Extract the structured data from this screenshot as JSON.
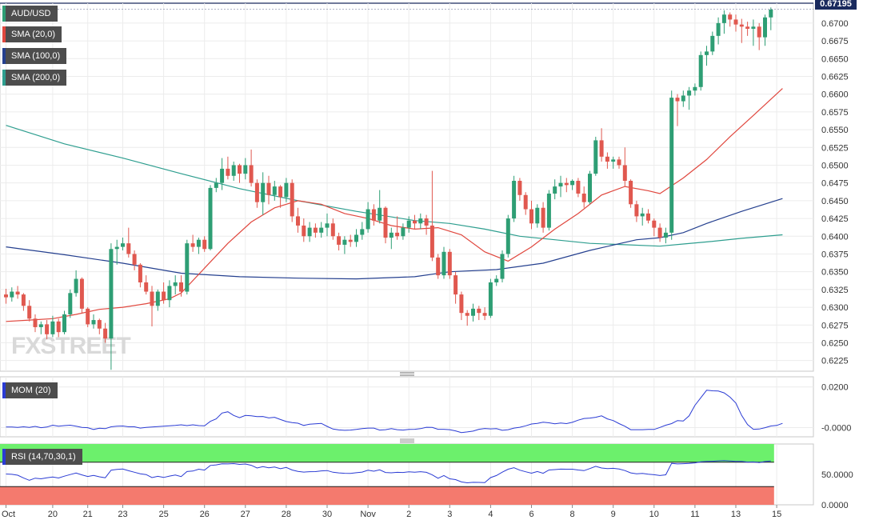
{
  "chart_data": {
    "type": "candlestick",
    "symbol": "AUD/USD",
    "last_price": "0.67195",
    "watermark": "FXSTREET",
    "colors": {
      "up": "#2e9e74",
      "down": "#e0584f",
      "sma20": "#e0473e",
      "sma100": "#25408f",
      "sma200": "#2e9e8f",
      "mom": "#2a3bd4",
      "rsi": "#2a3bd4",
      "rsi_overbought": "#6cf06c",
      "rsi_oversold": "#f47a6e"
    },
    "price_axis": {
      "min": 0.621,
      "max": 0.6728,
      "ticks": [
        "0.6225",
        "0.6250",
        "0.6275",
        "0.6300",
        "0.6325",
        "0.6350",
        "0.6375",
        "0.6400",
        "0.6425",
        "0.6450",
        "0.6475",
        "0.6500",
        "0.6525",
        "0.6550",
        "0.6575",
        "0.6600",
        "0.6625",
        "0.6650",
        "0.6675",
        "0.6700"
      ]
    },
    "x_axis": {
      "labels": [
        "Oct",
        "20",
        "21",
        "23",
        "25",
        "26",
        "27",
        "28",
        "30",
        "Nov",
        "2",
        "3",
        "4",
        "6",
        "8",
        "9",
        "10",
        "11",
        "13",
        "15"
      ],
      "label_bars": [
        0,
        8,
        14,
        20,
        27,
        34,
        41,
        48,
        55,
        62,
        69,
        76,
        83,
        90,
        97,
        104,
        111,
        118,
        125,
        132
      ]
    },
    "candles": [
      [
        0.6318,
        0.6326,
        0.6305,
        0.6314
      ],
      [
        0.6314,
        0.6328,
        0.6308,
        0.6322
      ],
      [
        0.6322,
        0.633,
        0.6312,
        0.6318
      ],
      [
        0.6318,
        0.632,
        0.6295,
        0.6302
      ],
      [
        0.6302,
        0.631,
        0.628,
        0.6284
      ],
      [
        0.6284,
        0.629,
        0.6265,
        0.6272
      ],
      [
        0.6272,
        0.628,
        0.6262,
        0.6276
      ],
      [
        0.6276,
        0.6282,
        0.6255,
        0.6262
      ],
      [
        0.6262,
        0.6288,
        0.6258,
        0.628
      ],
      [
        0.628,
        0.6284,
        0.6258,
        0.6265
      ],
      [
        0.6265,
        0.6295,
        0.6262,
        0.629
      ],
      [
        0.629,
        0.6325,
        0.6285,
        0.632
      ],
      [
        0.632,
        0.6352,
        0.6315,
        0.634
      ],
      [
        0.634,
        0.6342,
        0.6292,
        0.6298
      ],
      [
        0.6298,
        0.63,
        0.6272,
        0.6276
      ],
      [
        0.6276,
        0.629,
        0.627,
        0.6282
      ],
      [
        0.6282,
        0.6284,
        0.6262,
        0.627
      ],
      [
        0.627,
        0.6278,
        0.625,
        0.6256
      ],
      [
        0.6256,
        0.639,
        0.6212,
        0.6382
      ],
      [
        0.6382,
        0.6395,
        0.636,
        0.6385
      ],
      [
        0.6385,
        0.6398,
        0.638,
        0.639
      ],
      [
        0.639,
        0.6412,
        0.637,
        0.6375
      ],
      [
        0.6375,
        0.638,
        0.6352,
        0.636
      ],
      [
        0.636,
        0.6362,
        0.6328,
        0.6335
      ],
      [
        0.6335,
        0.6345,
        0.6318,
        0.6322
      ],
      [
        0.6322,
        0.633,
        0.6273,
        0.6302
      ],
      [
        0.6302,
        0.6325,
        0.6295,
        0.6322
      ],
      [
        0.6322,
        0.6335,
        0.6305,
        0.631
      ],
      [
        0.631,
        0.6338,
        0.63,
        0.633
      ],
      [
        0.633,
        0.6345,
        0.6318,
        0.6335
      ],
      [
        0.6335,
        0.6345,
        0.6315,
        0.6322
      ],
      [
        0.6322,
        0.6395,
        0.6318,
        0.639
      ],
      [
        0.639,
        0.6402,
        0.6378,
        0.6385
      ],
      [
        0.6385,
        0.6398,
        0.6375,
        0.6395
      ],
      [
        0.6395,
        0.64,
        0.6378,
        0.6382
      ],
      [
        0.6382,
        0.6472,
        0.638,
        0.6468
      ],
      [
        0.6468,
        0.6482,
        0.6462,
        0.6475
      ],
      [
        0.6475,
        0.651,
        0.6465,
        0.6495
      ],
      [
        0.6495,
        0.6512,
        0.648,
        0.6485
      ],
      [
        0.6485,
        0.6505,
        0.6478,
        0.65
      ],
      [
        0.65,
        0.6502,
        0.6475,
        0.6488
      ],
      [
        0.6488,
        0.651,
        0.648,
        0.65
      ],
      [
        0.65,
        0.6522,
        0.647,
        0.6475
      ],
      [
        0.6475,
        0.648,
        0.644,
        0.6448
      ],
      [
        0.6448,
        0.649,
        0.643,
        0.6475
      ],
      [
        0.6475,
        0.6485,
        0.6445,
        0.6458
      ],
      [
        0.6458,
        0.6478,
        0.645,
        0.647
      ],
      [
        0.647,
        0.6472,
        0.644,
        0.6455
      ],
      [
        0.6455,
        0.6482,
        0.6448,
        0.6475
      ],
      [
        0.6475,
        0.648,
        0.642,
        0.6428
      ],
      [
        0.6428,
        0.644,
        0.6405,
        0.6415
      ],
      [
        0.6415,
        0.6425,
        0.6392,
        0.64
      ],
      [
        0.64,
        0.642,
        0.6392,
        0.6412
      ],
      [
        0.6412,
        0.6418,
        0.6398,
        0.6405
      ],
      [
        0.6405,
        0.642,
        0.6398,
        0.6412
      ],
      [
        0.6412,
        0.6432,
        0.64,
        0.6418
      ],
      [
        0.6418,
        0.6425,
        0.6395,
        0.64
      ],
      [
        0.64,
        0.6405,
        0.638,
        0.6388
      ],
      [
        0.6388,
        0.64,
        0.6375,
        0.6395
      ],
      [
        0.6395,
        0.6402,
        0.6385,
        0.6392
      ],
      [
        0.6392,
        0.641,
        0.6385,
        0.6402
      ],
      [
        0.6402,
        0.642,
        0.6395,
        0.641
      ],
      [
        0.641,
        0.6448,
        0.6405,
        0.6438
      ],
      [
        0.6438,
        0.6445,
        0.6415,
        0.6422
      ],
      [
        0.6422,
        0.6465,
        0.6418,
        0.644
      ],
      [
        0.644,
        0.6442,
        0.639,
        0.6398
      ],
      [
        0.6398,
        0.6412,
        0.6382,
        0.6405
      ],
      [
        0.6405,
        0.6428,
        0.6395,
        0.64
      ],
      [
        0.64,
        0.6418,
        0.6395,
        0.6412
      ],
      [
        0.6412,
        0.6428,
        0.6405,
        0.6422
      ],
      [
        0.6422,
        0.643,
        0.641,
        0.6418
      ],
      [
        0.6418,
        0.6432,
        0.641,
        0.6425
      ],
      [
        0.6425,
        0.643,
        0.6402,
        0.6415
      ],
      [
        0.6415,
        0.6492,
        0.6365,
        0.637
      ],
      [
        0.637,
        0.6375,
        0.634,
        0.6345
      ],
      [
        0.6345,
        0.6385,
        0.634,
        0.6378
      ],
      [
        0.6378,
        0.6382,
        0.634,
        0.6345
      ],
      [
        0.6345,
        0.635,
        0.6305,
        0.6318
      ],
      [
        0.6318,
        0.6322,
        0.6282,
        0.6292
      ],
      [
        0.6292,
        0.6296,
        0.6274,
        0.6288
      ],
      [
        0.6288,
        0.6305,
        0.628,
        0.6298
      ],
      [
        0.6298,
        0.6302,
        0.6282,
        0.6292
      ],
      [
        0.6292,
        0.63,
        0.6282,
        0.6288
      ],
      [
        0.6288,
        0.634,
        0.6285,
        0.6335
      ],
      [
        0.6335,
        0.6345,
        0.633,
        0.634
      ],
      [
        0.634,
        0.638,
        0.6335,
        0.6375
      ],
      [
        0.6375,
        0.643,
        0.637,
        0.6425
      ],
      [
        0.6425,
        0.6485,
        0.642,
        0.6478
      ],
      [
        0.6478,
        0.6482,
        0.645,
        0.6458
      ],
      [
        0.6458,
        0.6462,
        0.643,
        0.6438
      ],
      [
        0.6438,
        0.645,
        0.641,
        0.6418
      ],
      [
        0.6418,
        0.6445,
        0.6412,
        0.644
      ],
      [
        0.644,
        0.6448,
        0.6405,
        0.6412
      ],
      [
        0.6412,
        0.6465,
        0.6408,
        0.646
      ],
      [
        0.646,
        0.648,
        0.6452,
        0.647
      ],
      [
        0.647,
        0.6485,
        0.6455,
        0.6475
      ],
      [
        0.6475,
        0.6482,
        0.6462,
        0.6472
      ],
      [
        0.6472,
        0.648,
        0.6465,
        0.6478
      ],
      [
        0.6478,
        0.6482,
        0.6455,
        0.646
      ],
      [
        0.646,
        0.647,
        0.644,
        0.6448
      ],
      [
        0.6448,
        0.6492,
        0.6445,
        0.6488
      ],
      [
        0.6488,
        0.654,
        0.6485,
        0.6535
      ],
      [
        0.6535,
        0.6552,
        0.6505,
        0.6512
      ],
      [
        0.6512,
        0.6518,
        0.6495,
        0.6505
      ],
      [
        0.6505,
        0.6512,
        0.6495,
        0.6508
      ],
      [
        0.6508,
        0.6512,
        0.6495,
        0.65
      ],
      [
        0.65,
        0.6525,
        0.647,
        0.6478
      ],
      [
        0.6478,
        0.648,
        0.644,
        0.6445
      ],
      [
        0.6445,
        0.645,
        0.642,
        0.6428
      ],
      [
        0.6428,
        0.644,
        0.6415,
        0.6432
      ],
      [
        0.6432,
        0.6438,
        0.6418,
        0.6422
      ],
      [
        0.6422,
        0.6425,
        0.64,
        0.6412
      ],
      [
        0.6412,
        0.6418,
        0.6392,
        0.6398
      ],
      [
        0.6398,
        0.6412,
        0.639,
        0.6405
      ],
      [
        0.6405,
        0.6605,
        0.6395,
        0.6595
      ],
      [
        0.6595,
        0.66,
        0.6555,
        0.659
      ],
      [
        0.659,
        0.6605,
        0.6582,
        0.6598
      ],
      [
        0.6598,
        0.661,
        0.6578,
        0.6605
      ],
      [
        0.6605,
        0.6615,
        0.6598,
        0.661
      ],
      [
        0.661,
        0.666,
        0.6605,
        0.6655
      ],
      [
        0.6655,
        0.6668,
        0.664,
        0.666
      ],
      [
        0.666,
        0.6688,
        0.6655,
        0.6682
      ],
      [
        0.6682,
        0.6708,
        0.667,
        0.67
      ],
      [
        0.67,
        0.6718,
        0.6685,
        0.6712
      ],
      [
        0.6712,
        0.6715,
        0.6695,
        0.6705
      ],
      [
        0.6705,
        0.6712,
        0.6688,
        0.6698
      ],
      [
        0.6698,
        0.6706,
        0.6672,
        0.6695
      ],
      [
        0.6695,
        0.6702,
        0.6682,
        0.6692
      ],
      [
        0.6692,
        0.6705,
        0.6668,
        0.6695
      ],
      [
        0.6695,
        0.67,
        0.6662,
        0.668
      ],
      [
        0.668,
        0.6712,
        0.6668,
        0.6708
      ],
      [
        0.6708,
        0.6722,
        0.669,
        0.6719
      ]
    ],
    "sma_20": {
      "x": [
        0,
        4,
        8,
        12,
        16,
        20,
        24,
        28,
        30,
        34,
        38,
        42,
        46,
        50,
        54,
        58,
        62,
        66,
        70,
        74,
        78,
        82,
        86,
        90,
        94,
        98,
        102,
        106,
        110,
        112,
        116,
        120,
        124,
        128,
        133
      ],
      "y": [
        0.628,
        0.6282,
        0.6284,
        0.629,
        0.6297,
        0.63,
        0.6305,
        0.6312,
        0.632,
        0.6355,
        0.639,
        0.642,
        0.644,
        0.645,
        0.6445,
        0.6432,
        0.6425,
        0.6415,
        0.641,
        0.6412,
        0.6402,
        0.6378,
        0.6365,
        0.6385,
        0.641,
        0.6432,
        0.6458,
        0.647,
        0.6464,
        0.646,
        0.6482,
        0.6508,
        0.654,
        0.657,
        0.6608
      ]
    },
    "sma_100": {
      "x": [
        0,
        10,
        20,
        30,
        40,
        50,
        60,
        70,
        76,
        84,
        92,
        100,
        108,
        112,
        116,
        120,
        126,
        133
      ],
      "y": [
        0.6385,
        0.6374,
        0.6362,
        0.6348,
        0.6343,
        0.6341,
        0.634,
        0.6343,
        0.635,
        0.6353,
        0.6362,
        0.638,
        0.6395,
        0.6398,
        0.6405,
        0.6418,
        0.6435,
        0.6453
      ]
    },
    "sma_200": {
      "x": [
        0,
        10,
        20,
        30,
        40,
        50,
        60,
        70,
        76,
        82,
        88,
        94,
        100,
        106,
        112,
        116,
        120,
        126,
        133
      ],
      "y": [
        0.6556,
        0.653,
        0.651,
        0.6488,
        0.6467,
        0.645,
        0.6435,
        0.6422,
        0.6418,
        0.641,
        0.64,
        0.6395,
        0.639,
        0.6388,
        0.6386,
        0.6389,
        0.6392,
        0.6397,
        0.6402
      ]
    },
    "mom": {
      "name": "MOM (20)",
      "ticks": [
        "0.0200",
        "-0.0000"
      ],
      "ylim": [
        -0.0045,
        0.025
      ],
      "values": [
        0.0003,
        0.0003,
        0.0001,
        0.0004,
        0.0001,
        0.0006,
        0.0,
        0.0003,
        0.0012,
        0.0007,
        0.001,
        0.0012,
        0.0007,
        0.0001,
        0.0,
        -0.0009,
        -0.0003,
        -0.0005,
        0.0004,
        0.0007,
        0.0008,
        0.0004,
        0.0004,
        -0.0002,
        0.0001,
        0.0003,
        0.0005,
        0.0007,
        0.0009,
        0.0011,
        0.0014,
        0.001,
        0.0014,
        0.001,
        0.0009,
        0.0031,
        0.0043,
        0.0072,
        0.0078,
        0.006,
        0.0049,
        0.006,
        0.0058,
        0.0054,
        0.0055,
        0.0048,
        0.0051,
        0.004,
        0.003,
        0.0025,
        0.0022,
        0.0011,
        0.0017,
        0.0019,
        0.0021,
        0.0006,
        -0.0007,
        -0.0011,
        -0.0013,
        -0.0012,
        -0.0009,
        -0.0005,
        -0.0002,
        -0.0002,
        -0.0012,
        -0.001,
        -0.0005,
        -0.001,
        -0.0012,
        -0.0009,
        -0.0008,
        -0.0005,
        0.0002,
        0.0001,
        -0.0008,
        -0.0008,
        -0.001,
        -0.0016,
        -0.0024,
        -0.0021,
        -0.0017,
        -0.0008,
        -0.0004,
        -0.0006,
        -0.0005,
        -0.0013,
        -0.001,
        -0.0002,
        0.0002,
        0.0009,
        0.0018,
        0.0021,
        0.0027,
        0.0024,
        0.0019,
        0.0023,
        0.002,
        0.0026,
        0.0037,
        0.0045,
        0.0047,
        0.0051,
        0.0058,
        0.0043,
        0.0035,
        0.002,
        0.0007,
        -0.001,
        -0.001,
        -0.001,
        -0.0009,
        -0.0009,
        0.0001,
        0.0012,
        0.002,
        0.0035,
        0.0033,
        0.0058,
        0.011,
        0.0147,
        0.0184,
        0.0181,
        0.018,
        0.0171,
        0.015,
        0.0121,
        0.006,
        0.0015,
        -0.0008,
        -0.0007,
        0.0,
        0.0008,
        0.0011,
        0.0021
      ]
    },
    "rsi": {
      "name": "RSI (14,70,30,1)",
      "ticks": [
        "50.0000",
        "0.0000"
      ],
      "ylim": [
        0,
        100
      ],
      "overbought": 70,
      "oversold": 30,
      "values": [
        50.6,
        50.1,
        48.7,
        44.2,
        40.3,
        43.8,
        42.7,
        44.5,
        45.6,
        44.1,
        47.1,
        49.8,
        52.3,
        49.2,
        46.6,
        48.3,
        46.1,
        44.5,
        57.0,
        58.2,
        58.8,
        56.1,
        53.5,
        51.0,
        49.7,
        44.8,
        46.8,
        45.0,
        47.2,
        48.9,
        46.4,
        54.8,
        55.5,
        58.5,
        57.1,
        64.8,
        65.6,
        67.5,
        67.2,
        67.8,
        66.5,
        67.1,
        65.0,
        60.5,
        62.7,
        60.8,
        62.1,
        59.3,
        61.4,
        57.2,
        55.0,
        53.8,
        54.5,
        54.6,
        55.8,
        56.3,
        53.6,
        52.5,
        51.9,
        51.6,
        52.7,
        53.8,
        56.8,
        55.3,
        57.5,
        53.2,
        52.6,
        53.4,
        53.2,
        54.2,
        53.5,
        54.5,
        53.4,
        49.2,
        43.7,
        48.1,
        42.7,
        41.5,
        37.6,
        36.2,
        37.0,
        36.9,
        36.5,
        44.8,
        48.2,
        53.7,
        58.6,
        60.9,
        57.0,
        54.3,
        52.0,
        54.7,
        51.8,
        57.2,
        57.9,
        58.7,
        58.5,
        58.6,
        57.2,
        56.2,
        59.6,
        63.3,
        60.5,
        59.5,
        60.0,
        58.8,
        56.3,
        52.5,
        50.9,
        51.6,
        50.4,
        49.5,
        48.2,
        49.3,
        68.2,
        67.3,
        67.6,
        68.1,
        68.9,
        70.8,
        71.4,
        71.6,
        72.2,
        72.8,
        72.0,
        71.3,
        71.3,
        70.2,
        70.5,
        69.3,
        71.2,
        72.0
      ]
    }
  },
  "legend": {
    "symbol": "AUD/USD",
    "sma20": "SMA (20,0)",
    "sma100": "SMA (100,0)",
    "sma200": "SMA (200,0)",
    "mom": "MOM (20)",
    "rsi": "RSI (14,70,30,1)"
  }
}
